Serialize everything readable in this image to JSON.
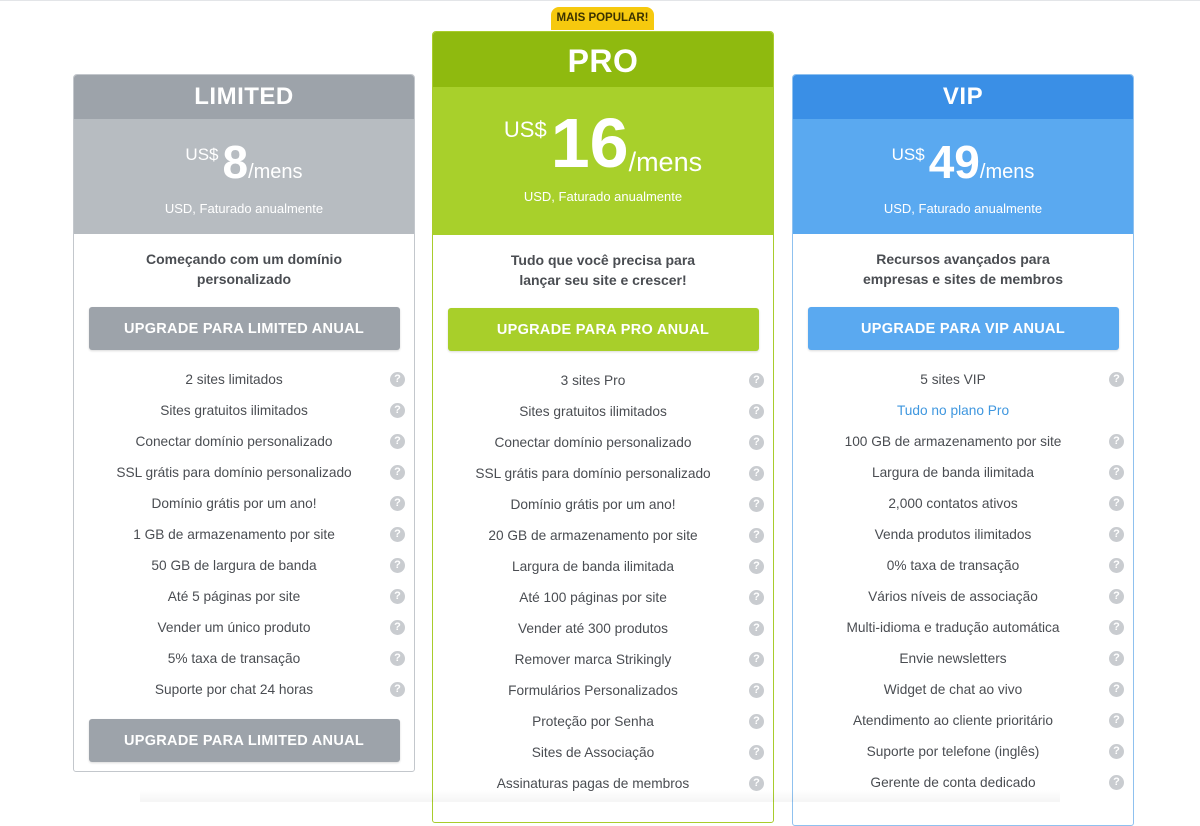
{
  "badge": "MAIS POPULAR!",
  "plans": {
    "limited": {
      "name": "LIMITED",
      "currency": "US$",
      "amount": "8",
      "period": "/mens",
      "billing": "USD, Faturado anualmente",
      "tagline": "Começando com um domínio personalizado",
      "button": "UPGRADE PARA LIMITED ANUAL",
      "button_bottom": "UPGRADE PARA LIMITED ANUAL",
      "features": [
        "2 sites limitados",
        "Sites gratuitos ilimitados",
        "Conectar domínio personalizado",
        "SSL grátis para domínio personalizado",
        "Domínio grátis por um ano!",
        "1 GB de armazenamento por site",
        "50 GB de largura de banda",
        "Até 5 páginas por site",
        "Vender um único produto",
        "5% taxa de transação",
        "Suporte por chat 24 horas"
      ]
    },
    "pro": {
      "name": "PRO",
      "currency": "US$",
      "amount": "16",
      "period": "/mens",
      "billing": "USD, Faturado anualmente",
      "tagline": "Tudo que você precisa para lançar seu site e crescer!",
      "button": "UPGRADE PARA PRO ANUAL",
      "features": [
        "3 sites Pro",
        "Sites gratuitos ilimitados",
        "Conectar domínio personalizado",
        "SSL grátis para domínio personalizado",
        "Domínio grátis por um ano!",
        "20 GB de armazenamento por site",
        "Largura de banda ilimitada",
        "Até 100 páginas por site",
        "Vender até 300 produtos",
        "Remover marca Strikingly",
        "Formulários Personalizados",
        "Proteção por Senha",
        "Sites de Associação",
        "Assinaturas pagas de membros"
      ]
    },
    "vip": {
      "name": "VIP",
      "currency": "US$",
      "amount": "49",
      "period": "/mens",
      "billing": "USD, Faturado anualmente",
      "tagline": "Recursos avançados para empresas e sites de membros",
      "button": "UPGRADE PARA VIP ANUAL",
      "features": [
        "5 sites VIP",
        "Tudo no plano Pro",
        "100 GB de armazenamento por site",
        "Largura de banda ilimitada",
        "2,000 contatos ativos",
        "Venda produtos ilimitados",
        "0% taxa de transação",
        "Vários níveis de associação",
        "Multi-idioma e tradução automática",
        "Envie newsletters",
        "Widget de chat ao vivo",
        "Atendimento ao cliente prioritário",
        "Suporte por telefone (inglês)",
        "Gerente de conta dedicado"
      ]
    }
  },
  "help_icon_glyph": "?",
  "colors": {
    "limited": "#9da3aa",
    "pro": "#8fba0f",
    "vip": "#3a8fe6",
    "badge": "#f6c90e",
    "accent_link": "#3f97df"
  }
}
